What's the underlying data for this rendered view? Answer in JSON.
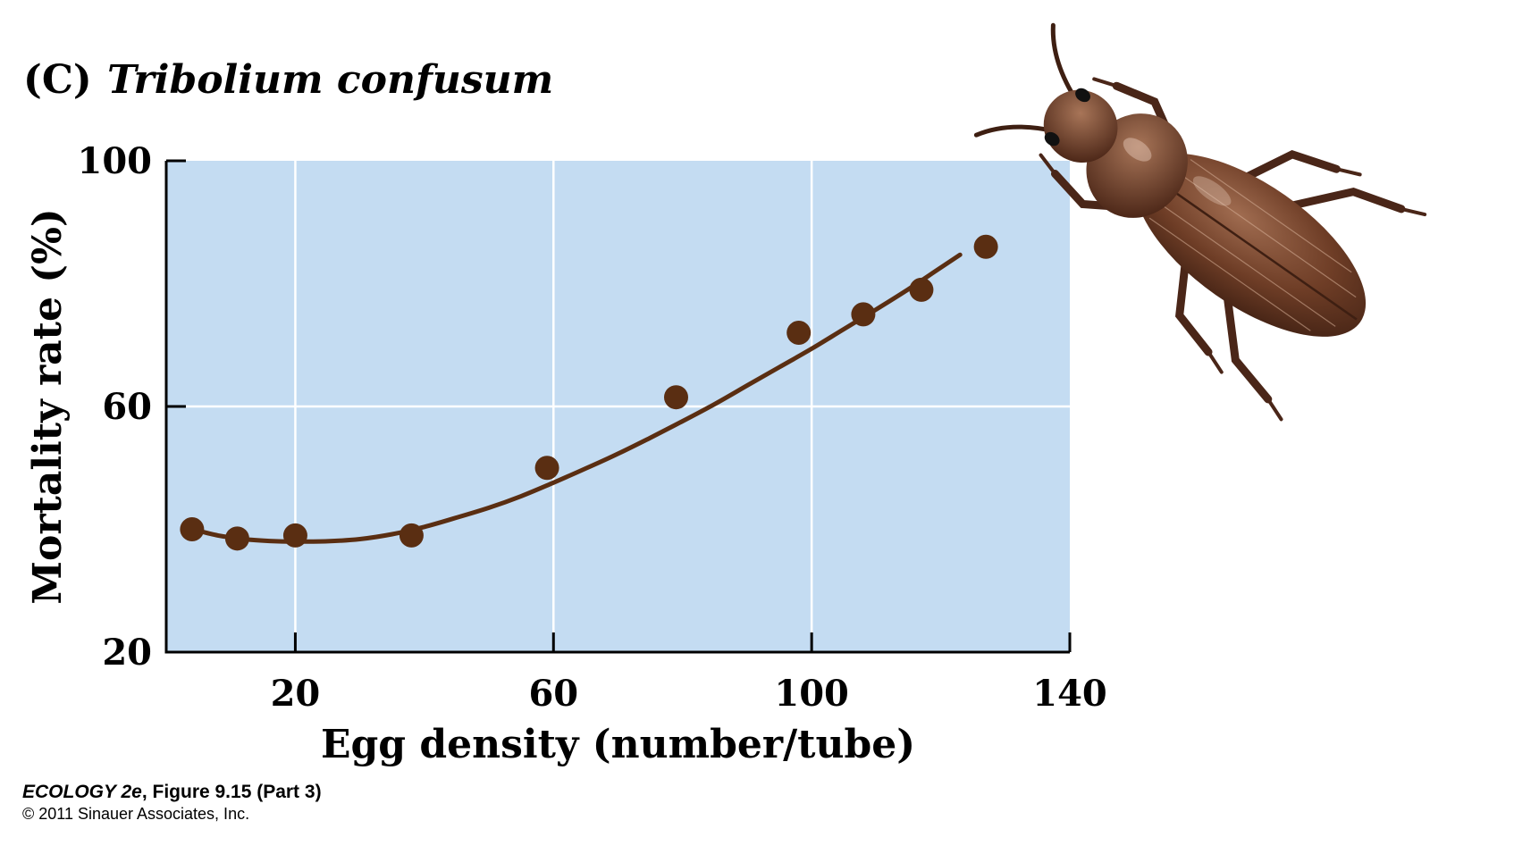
{
  "figure": {
    "panel_label": "(C)",
    "species": "Tribolium confusum",
    "caption_book_italic": "ECOLOGY 2e",
    "caption_rest": ", Figure 9.15 (Part 3)",
    "copyright": "© 2011 Sinauer Associates, Inc."
  },
  "chart_data": {
    "type": "scatter",
    "title": "",
    "xlabel": "Egg density (number/tube)",
    "ylabel": "Mortality rate (%)",
    "xlim": [
      0,
      140
    ],
    "ylim": [
      20,
      100
    ],
    "xticks": [
      20,
      60,
      100,
      140
    ],
    "yticks": [
      20,
      60,
      100
    ],
    "grid": true,
    "plot_background": "#c4dcf2",
    "gridline_color": "#ffffff",
    "marker_color": "#5a2e12",
    "curve_color": "#5a2e12",
    "series": [
      {
        "kind": "points",
        "x": [
          4,
          11,
          20,
          38,
          59,
          79,
          98,
          108,
          117,
          127
        ],
        "y": [
          40,
          38.5,
          39,
          39,
          50,
          61.5,
          72,
          75,
          79,
          86
        ]
      },
      {
        "kind": "fitted-curve",
        "x": [
          4,
          8,
          12,
          16,
          20,
          25,
          30,
          35,
          40,
          45,
          50,
          55,
          60,
          65,
          70,
          75,
          80,
          85,
          90,
          95,
          100,
          105,
          110,
          115,
          120,
          123
        ],
        "y": [
          40,
          39,
          38.4,
          38.1,
          38,
          38.05,
          38.4,
          39.2,
          40.4,
          41.9,
          43.5,
          45.4,
          47.6,
          49.9,
          52.3,
          54.9,
          57.6,
          60.4,
          63.4,
          66.4,
          69.4,
          72.6,
          75.8,
          79.1,
          82.6,
          84.7
        ]
      }
    ]
  },
  "illustration": {
    "icon": "beetle-icon"
  }
}
